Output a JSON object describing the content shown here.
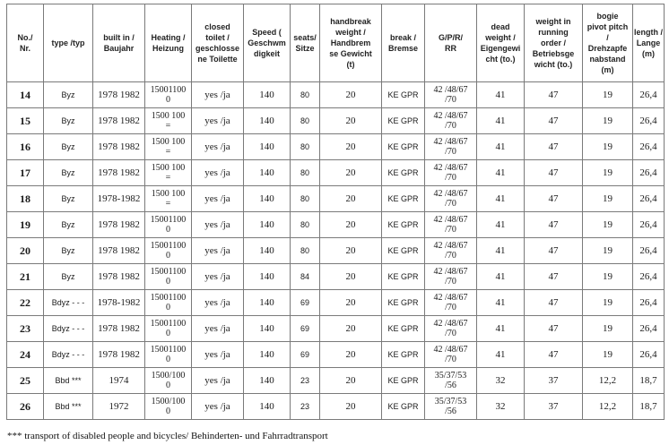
{
  "headers": [
    "No./\nNr.",
    "type /typ",
    "built in /\nBaujahr",
    "Heating /\nHeizung",
    "closed\ntoilet /\ngeschlosse\nne Toilette",
    "Speed (\nGeschwm\ndigkeit",
    "seats/\nSitze",
    "handbreak\nweight /\nHandbrem\nse Gewicht\n(t)",
    "break /\nBremse",
    "G/P/R/\nRR",
    "dead\nweight /\nEigengewi\ncht (to.)",
    "weight in\nrunning\norder /\nBetriebsge\nwicht (to.)",
    "bogie\npivot pitch\n/\nDrehzapfe\nnabstand\n(m)",
    "length /\nLange\n(m)"
  ],
  "rows": [
    {
      "nr": "14",
      "type": "Byz",
      "built": "1978 1982",
      "heating": "15001100\n0",
      "toilet": "yes /ja",
      "speed": "140",
      "seats": "80",
      "handbrake": "20",
      "brake": "KE GPR",
      "gprr": "42 /48/67\n/70",
      "dead": "41",
      "running": "47",
      "bogie": "19",
      "length": "26,4"
    },
    {
      "nr": "15",
      "type": "Byz",
      "built": "1978 1982",
      "heating": "1500 100\n=",
      "toilet": "yes /ja",
      "speed": "140",
      "seats": "80",
      "handbrake": "20",
      "brake": "KE GPR",
      "gprr": "42 /48/67\n/70",
      "dead": "41",
      "running": "47",
      "bogie": "19",
      "length": "26,4"
    },
    {
      "nr": "16",
      "type": "Byz",
      "built": "1978 1982",
      "heating": "1500 100\n=",
      "toilet": "yes /ja",
      "speed": "140",
      "seats": "80",
      "handbrake": "20",
      "brake": "KE GPR",
      "gprr": "42 /48/67\n/70",
      "dead": "41",
      "running": "47",
      "bogie": "19",
      "length": "26,4"
    },
    {
      "nr": "17",
      "type": "Byz",
      "built": "1978 1982",
      "heating": "1500 100\n=",
      "toilet": "yes /ja",
      "speed": "140",
      "seats": "80",
      "handbrake": "20",
      "brake": "KE GPR",
      "gprr": "42 /48/67\n/70",
      "dead": "41",
      "running": "47",
      "bogie": "19",
      "length": "26,4"
    },
    {
      "nr": "18",
      "type": "Byz",
      "built": "1978-1982",
      "heating": "1500 100\n=",
      "toilet": "yes /ja",
      "speed": "140",
      "seats": "80",
      "handbrake": "20",
      "brake": "KE GPR",
      "gprr": "42 /48/67\n/70",
      "dead": "41",
      "running": "47",
      "bogie": "19",
      "length": "26,4"
    },
    {
      "nr": "19",
      "type": "Byz",
      "built": "1978 1982",
      "heating": "15001100\n0",
      "toilet": "yes /ja",
      "speed": "140",
      "seats": "80",
      "handbrake": "20",
      "brake": "KE GPR",
      "gprr": "42 /48/67\n/70",
      "dead": "41",
      "running": "47",
      "bogie": "19",
      "length": "26,4"
    },
    {
      "nr": "20",
      "type": "Byz",
      "built": "1978 1982",
      "heating": "15001100\n0",
      "toilet": "yes /ja",
      "speed": "140",
      "seats": "80",
      "handbrake": "20",
      "brake": "KE GPR",
      "gprr": "42 /48/67\n/70",
      "dead": "41",
      "running": "47",
      "bogie": "19",
      "length": "26,4"
    },
    {
      "nr": "21",
      "type": "Byz",
      "built": "1978 1982",
      "heating": "15001100\n0",
      "toilet": "yes /ja",
      "speed": "140",
      "seats": "84",
      "handbrake": "20",
      "brake": "KE GPR",
      "gprr": "42 /48/67\n/70",
      "dead": "41",
      "running": "47",
      "bogie": "19",
      "length": "26,4"
    },
    {
      "nr": "22",
      "type": "Bdyz - - -",
      "built": "1978-1982",
      "heating": "15001100\n0",
      "toilet": "yes /ja",
      "speed": "140",
      "seats": "69",
      "handbrake": "20",
      "brake": "KE GPR",
      "gprr": "42 /48/67\n/70",
      "dead": "41",
      "running": "47",
      "bogie": "19",
      "length": "26,4"
    },
    {
      "nr": "23",
      "type": "Bdyz - - -",
      "built": "1978 1982",
      "heating": "15001100\n0",
      "toilet": "yes /ja",
      "speed": "140",
      "seats": "69",
      "handbrake": "20",
      "brake": "KE GPR",
      "gprr": "42 /48/67\n/70",
      "dead": "41",
      "running": "47",
      "bogie": "19",
      "length": "26,4"
    },
    {
      "nr": "24",
      "type": "Bdyz - - -",
      "built": "1978 1982",
      "heating": "15001100\n0",
      "toilet": "yes /ja",
      "speed": "140",
      "seats": "69",
      "handbrake": "20",
      "brake": "KE GPR",
      "gprr": "42 /48/67\n/70",
      "dead": "41",
      "running": "47",
      "bogie": "19",
      "length": "26,4"
    },
    {
      "nr": "25",
      "type": "Bbd ***",
      "built": "1974",
      "heating": "1500/100\n0",
      "toilet": "yes /ja",
      "speed": "140",
      "seats": "23",
      "handbrake": "20",
      "brake": "KE GPR",
      "gprr": "35/37/53\n/56",
      "dead": "32",
      "running": "37",
      "bogie": "12,2",
      "length": "18,7"
    },
    {
      "nr": "26",
      "type": "Bbd ***",
      "built": "1972",
      "heating": "1500/100\n0",
      "toilet": "yes /ja",
      "speed": "140",
      "seats": "23",
      "handbrake": "20",
      "brake": "KE GPR",
      "gprr": "35/37/53\n/56",
      "dead": "32",
      "running": "37",
      "bogie": "12,2",
      "length": "18,7"
    }
  ],
  "footnote": "*** transport of disabled people and bicycles/ Behinderten- und Fahrradtransport"
}
